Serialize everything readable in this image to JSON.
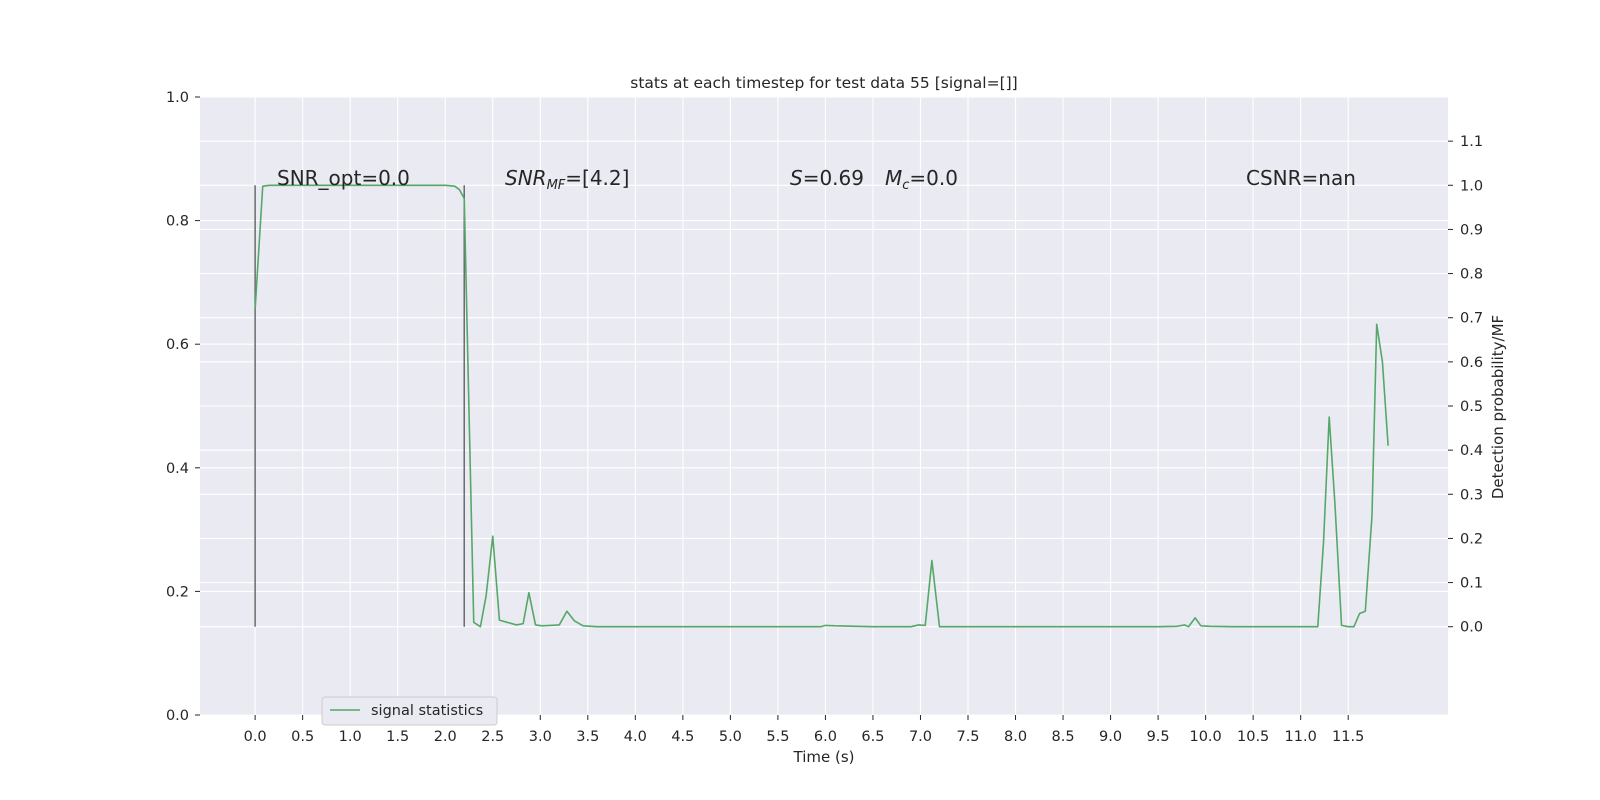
{
  "chart_data": {
    "type": "line",
    "title": "stats at each timestep for test data 55 [signal=[]]",
    "xlabel": "Time (s)",
    "ylabel_left": "",
    "ylabel_right": "Detection probability/MF",
    "xlim": [
      -0.58,
      12.55
    ],
    "ylim_left": [
      0.0,
      1.0
    ],
    "ylim_right": [
      -0.2,
      1.2
    ],
    "x_ticks": [
      "0.0",
      "0.5",
      "1.0",
      "1.5",
      "2.0",
      "2.5",
      "3.0",
      "3.5",
      "4.0",
      "4.5",
      "5.0",
      "5.5",
      "6.0",
      "6.5",
      "7.0",
      "7.5",
      "8.0",
      "8.5",
      "9.0",
      "9.5",
      "10.0",
      "10.5",
      "11.0",
      "11.5"
    ],
    "y_ticks_left": [
      "0.0",
      "0.2",
      "0.4",
      "0.6",
      "0.8",
      "1.0"
    ],
    "y_ticks_right": [
      "0.0",
      "0.1",
      "0.2",
      "0.3",
      "0.4",
      "0.5",
      "0.6",
      "0.7",
      "0.8",
      "0.9",
      "1.0",
      "1.1"
    ],
    "grid": true,
    "legend_position": "lower-left",
    "colors": {
      "background": "#eaeaf2",
      "grid": "#ffffff",
      "series": "#55a868",
      "marker_line": "#6b6b6b"
    },
    "series": [
      {
        "name": "signal statistics",
        "axis": "right",
        "points": [
          [
            0.0,
            0.72
          ],
          [
            0.08,
            0.998
          ],
          [
            0.15,
            1.0
          ],
          [
            0.3,
            1.0
          ],
          [
            0.6,
            1.0
          ],
          [
            1.0,
            1.0
          ],
          [
            1.5,
            1.0
          ],
          [
            2.0,
            1.0
          ],
          [
            2.1,
            0.998
          ],
          [
            2.15,
            0.99
          ],
          [
            2.2,
            0.97
          ],
          [
            2.3,
            0.01
          ],
          [
            2.37,
            0.0
          ],
          [
            2.43,
            0.07
          ],
          [
            2.5,
            0.205
          ],
          [
            2.57,
            0.015
          ],
          [
            2.65,
            0.01
          ],
          [
            2.75,
            0.004
          ],
          [
            2.82,
            0.007
          ],
          [
            2.88,
            0.077
          ],
          [
            2.95,
            0.004
          ],
          [
            3.02,
            0.002
          ],
          [
            3.1,
            0.003
          ],
          [
            3.2,
            0.004
          ],
          [
            3.28,
            0.035
          ],
          [
            3.36,
            0.013
          ],
          [
            3.45,
            0.002
          ],
          [
            3.6,
            0.0
          ],
          [
            4.5,
            0.0
          ],
          [
            5.5,
            0.0
          ],
          [
            5.95,
            0.0
          ],
          [
            6.0,
            0.003
          ],
          [
            6.1,
            0.002
          ],
          [
            6.5,
            0.0
          ],
          [
            6.9,
            0.0
          ],
          [
            6.98,
            0.004
          ],
          [
            7.05,
            0.003
          ],
          [
            7.12,
            0.15
          ],
          [
            7.2,
            0.0
          ],
          [
            7.4,
            0.0
          ],
          [
            8.5,
            0.0
          ],
          [
            9.5,
            0.0
          ],
          [
            9.7,
            0.001
          ],
          [
            9.78,
            0.004
          ],
          [
            9.82,
            0.0
          ],
          [
            9.89,
            0.02
          ],
          [
            9.95,
            0.002
          ],
          [
            10.05,
            0.001
          ],
          [
            10.3,
            0.0
          ],
          [
            11.0,
            0.0
          ],
          [
            11.18,
            0.0
          ],
          [
            11.24,
            0.19
          ],
          [
            11.3,
            0.475
          ],
          [
            11.36,
            0.28
          ],
          [
            11.43,
            0.003
          ],
          [
            11.5,
            0.0
          ],
          [
            11.56,
            0.0
          ],
          [
            11.62,
            0.03
          ],
          [
            11.68,
            0.035
          ],
          [
            11.75,
            0.25
          ],
          [
            11.8,
            0.685
          ],
          [
            11.86,
            0.6
          ],
          [
            11.92,
            0.41
          ]
        ]
      }
    ],
    "vertical_lines_x": [
      0.0,
      2.2
    ],
    "annotations": [
      {
        "text": "SNR_opt=0.0"
      },
      {
        "parts": [
          "SNR",
          "MF",
          "=[4.2]"
        ]
      },
      {
        "parts": [
          "S",
          "=0.69"
        ]
      },
      {
        "parts": [
          "M",
          "c",
          "=0.0"
        ]
      },
      {
        "text": "CSNR=nan"
      }
    ]
  }
}
